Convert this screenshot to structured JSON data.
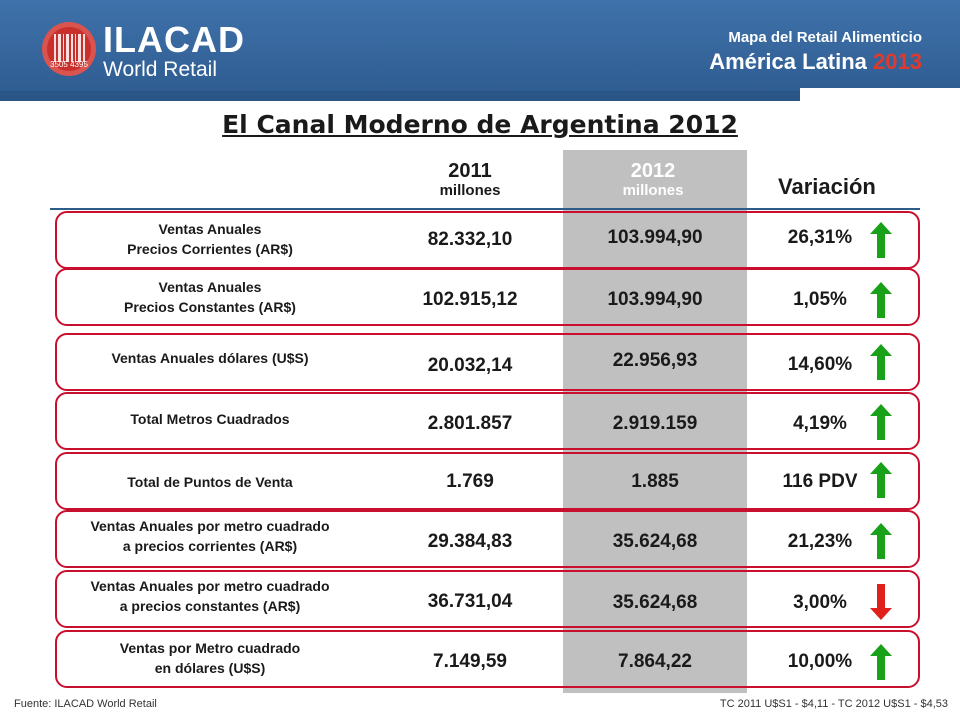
{
  "header": {
    "logo_name": "ILACAD",
    "logo_sub": "World Retail",
    "logo_badge": "3505 4395",
    "subtitle": "Mapa del Retail Alimenticio",
    "region": "América Latina",
    "region_year": "2013",
    "colors": {
      "band": "#3f72aa",
      "accent": "#e03a2a"
    }
  },
  "title": "El Canal Moderno de Argentina 2012",
  "columns": {
    "y2011": "2011",
    "y2011_unit": "millones",
    "y2012": "2012",
    "y2012_unit": "millones",
    "variation": "Variación"
  },
  "rows": [
    {
      "label_l1": "Ventas Anuales",
      "label_l2": "Precios Corrientes  (AR$)",
      "v2011": "82.332,10",
      "v2012": "103.994,90",
      "var": "26,31%",
      "trend": "up"
    },
    {
      "label_l1": "Ventas Anuales",
      "label_l2": "Precios Constantes  (AR$)",
      "v2011": "102.915,12",
      "v2012": "103.994,90",
      "var": "1,05%",
      "trend": "up"
    },
    {
      "label_l1": "Ventas Anuales dólares  (U$S)",
      "label_l2": "",
      "v2011": "20.032,14",
      "v2012": "22.956,93",
      "var": "14,60%",
      "trend": "up"
    },
    {
      "label_l1": "Total Metros Cuadrados",
      "label_l2": "",
      "v2011": "2.801.857",
      "v2012": "2.919.159",
      "var": "4,19%",
      "trend": "up"
    },
    {
      "label_l1": "Total de Puntos de Venta",
      "label_l2": "",
      "v2011": "1.769",
      "v2012": "1.885",
      "var": "116 PDV",
      "trend": "up"
    },
    {
      "label_l1": "Ventas Anuales por metro cuadrado",
      "label_l2": "a precios corrientes (AR$)",
      "v2011": "29.384,83",
      "v2012": "35.624,68",
      "var": "21,23%",
      "trend": "up"
    },
    {
      "label_l1": "Ventas Anuales por metro cuadrado",
      "label_l2": "a precios constantes (AR$)",
      "v2011": "36.731,04",
      "v2012": "35.624,68",
      "var": "3,00%",
      "trend": "down"
    },
    {
      "label_l1": "Ventas  por  Metro cuadrado",
      "label_l2": "en dólares (U$S)",
      "v2011": "7.149,59",
      "v2012": "7.864,22",
      "var": "10,00%",
      "trend": "up"
    }
  ],
  "footer": {
    "source": "Fuente: ILACAD World Retail",
    "exchange": "TC 2011 U$S1 - $4,11 - TC 2012 U$S1 - $4,53"
  }
}
